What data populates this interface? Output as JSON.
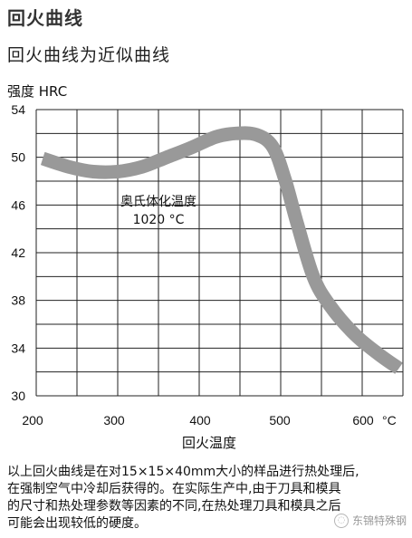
{
  "header": {
    "heading": "回火曲线",
    "subtitle": "回火曲线为近似曲线"
  },
  "chart_data": {
    "type": "line",
    "ylabel": "强度 HRC",
    "xlabel": "回火温度",
    "x_unit_label": "°C",
    "xlim": [
      200,
      650
    ],
    "ylim": [
      30,
      54
    ],
    "x_ticks": [
      200,
      300,
      400,
      500,
      600
    ],
    "y_ticks": [
      30,
      34,
      38,
      42,
      46,
      50,
      54
    ],
    "x_tick_labels": [
      "200",
      "300",
      "400",
      "500",
      "600"
    ],
    "y_tick_labels": [
      "30",
      "34",
      "38",
      "42",
      "46",
      "50",
      "54"
    ],
    "grid": true,
    "annotation": {
      "line1": "奥氏体化温度",
      "line2": "1020 °C"
    },
    "series": [
      {
        "color": "#999999",
        "x": [
          208,
          240,
          270,
          300,
          330,
          360,
          390,
          420,
          445,
          470,
          490,
          505,
          520,
          540,
          560,
          590,
          620,
          645
        ],
        "y": [
          49.9,
          49.2,
          48.8,
          48.8,
          49.2,
          50.0,
          50.8,
          51.7,
          52.0,
          51.9,
          50.9,
          48.2,
          44.5,
          40.0,
          37.6,
          35.2,
          33.5,
          32.3
        ]
      }
    ]
  },
  "caption": {
    "line1": "以上回火曲线是在对15×15×40mm大小的样品进行热处理后,",
    "line2": "在强制空气中冷却后获得的。在实际生产中,由于刀具和模具",
    "line3": "的尺寸和热处理参数等因素的不同,在热处理刀具和模具之后",
    "line4": "可能会出现较低的硬度。"
  },
  "watermark": {
    "text": "东锦特殊钢"
  }
}
